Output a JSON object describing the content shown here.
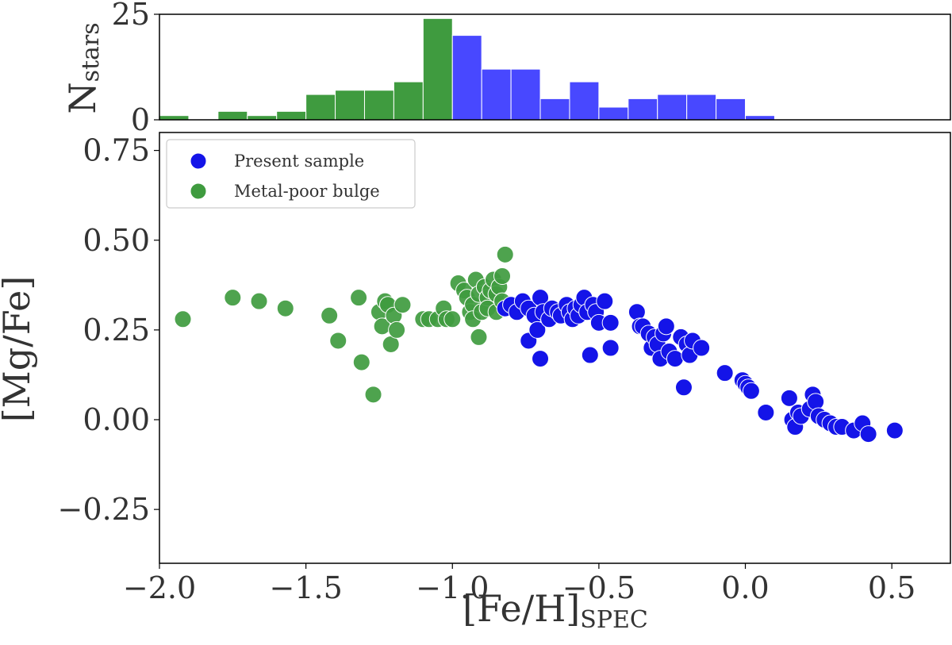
{
  "chart_data": [
    {
      "id": "histogram",
      "type": "bar",
      "ylabel": "N",
      "ylabel_sub": "stars",
      "xlim": [
        -2.0,
        0.7
      ],
      "ylim": [
        0,
        25
      ],
      "ytick_values": [
        0,
        25
      ],
      "ytick_labels": [
        "0",
        "25"
      ],
      "bin_width": 0.1,
      "colors": {
        "metal_poor": "#3f9b3f",
        "present": "#4848ff"
      },
      "bars": [
        {
          "x0": -2.0,
          "value": 1,
          "group": "metal_poor"
        },
        {
          "x0": -1.9,
          "value": 0,
          "group": "metal_poor"
        },
        {
          "x0": -1.8,
          "value": 2,
          "group": "metal_poor"
        },
        {
          "x0": -1.7,
          "value": 1,
          "group": "metal_poor"
        },
        {
          "x0": -1.6,
          "value": 2,
          "group": "metal_poor"
        },
        {
          "x0": -1.5,
          "value": 6,
          "group": "metal_poor"
        },
        {
          "x0": -1.4,
          "value": 7,
          "group": "metal_poor"
        },
        {
          "x0": -1.3,
          "value": 7,
          "group": "metal_poor"
        },
        {
          "x0": -1.2,
          "value": 9,
          "group": "metal_poor"
        },
        {
          "x0": -1.1,
          "value": 24,
          "group": "metal_poor"
        },
        {
          "x0": -1.0,
          "value": 20,
          "group": "present"
        },
        {
          "x0": -0.9,
          "value": 12,
          "group": "present"
        },
        {
          "x0": -0.8,
          "value": 12,
          "group": "present"
        },
        {
          "x0": -0.7,
          "value": 5,
          "group": "present"
        },
        {
          "x0": -0.6,
          "value": 9,
          "group": "present"
        },
        {
          "x0": -0.5,
          "value": 3,
          "group": "present"
        },
        {
          "x0": -0.4,
          "value": 5,
          "group": "present"
        },
        {
          "x0": -0.3,
          "value": 6,
          "group": "present"
        },
        {
          "x0": -0.2,
          "value": 6,
          "group": "present"
        },
        {
          "x0": -0.1,
          "value": 5,
          "group": "present"
        },
        {
          "x0": 0.0,
          "value": 1,
          "group": "present"
        }
      ]
    },
    {
      "id": "scatter",
      "type": "scatter",
      "xlabel": "[Fe/H]",
      "xlabel_sub": "SPEC",
      "ylabel": "[Mg/Fe]",
      "xlim": [
        -2.0,
        0.7
      ],
      "ylim": [
        -0.4,
        0.8
      ],
      "xtick_values": [
        -2.0,
        -1.5,
        -1.0,
        -0.5,
        0.0,
        0.5
      ],
      "xtick_labels": [
        "−2.0",
        "−1.5",
        "−1.0",
        "−0.5",
        "0.0",
        "0.5"
      ],
      "ytick_values": [
        0.75,
        0.5,
        0.25,
        0.0,
        -0.25
      ],
      "ytick_labels": [
        "0.75",
        "0.50",
        "0.25",
        "0.00",
        "−0.25"
      ],
      "legend": {
        "position": "top-left",
        "entries": [
          {
            "label": "Present sample",
            "color": "#1414e8"
          },
          {
            "label": "Metal-poor bulge",
            "color": "#3f9b3f"
          }
        ]
      },
      "series": [
        {
          "name": "Present sample",
          "color": "#1414e8",
          "points": [
            [
              -0.82,
              0.31
            ],
            [
              -0.8,
              0.32
            ],
            [
              -0.78,
              0.3
            ],
            [
              -0.76,
              0.33
            ],
            [
              -0.74,
              0.31
            ],
            [
              -0.74,
              0.22
            ],
            [
              -0.72,
              0.29
            ],
            [
              -0.71,
              0.25
            ],
            [
              -0.7,
              0.34
            ],
            [
              -0.7,
              0.17
            ],
            [
              -0.69,
              0.3
            ],
            [
              -0.67,
              0.28
            ],
            [
              -0.66,
              0.31
            ],
            [
              -0.64,
              0.3
            ],
            [
              -0.63,
              0.29
            ],
            [
              -0.61,
              0.32
            ],
            [
              -0.6,
              0.3
            ],
            [
              -0.59,
              0.28
            ],
            [
              -0.58,
              0.31
            ],
            [
              -0.57,
              0.29
            ],
            [
              -0.56,
              0.32
            ],
            [
              -0.55,
              0.34
            ],
            [
              -0.54,
              0.3
            ],
            [
              -0.53,
              0.18
            ],
            [
              -0.52,
              0.32
            ],
            [
              -0.51,
              0.3
            ],
            [
              -0.5,
              0.27
            ],
            [
              -0.48,
              0.33
            ],
            [
              -0.46,
              0.27
            ],
            [
              -0.46,
              0.2
            ],
            [
              -0.37,
              0.3
            ],
            [
              -0.36,
              0.26
            ],
            [
              -0.35,
              0.26
            ],
            [
              -0.33,
              0.24
            ],
            [
              -0.32,
              0.2
            ],
            [
              -0.31,
              0.23
            ],
            [
              -0.3,
              0.21
            ],
            [
              -0.29,
              0.17
            ],
            [
              -0.28,
              0.24
            ],
            [
              -0.27,
              0.26
            ],
            [
              -0.26,
              0.19
            ],
            [
              -0.24,
              0.17
            ],
            [
              -0.22,
              0.23
            ],
            [
              -0.21,
              0.09
            ],
            [
              -0.2,
              0.21
            ],
            [
              -0.19,
              0.18
            ],
            [
              -0.18,
              0.22
            ],
            [
              -0.15,
              0.2
            ],
            [
              -0.07,
              0.13
            ],
            [
              -0.01,
              0.11
            ],
            [
              0.0,
              0.1
            ],
            [
              0.01,
              0.09
            ],
            [
              0.02,
              0.08
            ],
            [
              0.07,
              0.02
            ],
            [
              0.15,
              0.06
            ],
            [
              0.16,
              0.0
            ],
            [
              0.17,
              -0.02
            ],
            [
              0.18,
              0.02
            ],
            [
              0.19,
              0.01
            ],
            [
              0.22,
              0.03
            ],
            [
              0.23,
              0.07
            ],
            [
              0.24,
              0.05
            ],
            [
              0.25,
              0.01
            ],
            [
              0.27,
              0.0
            ],
            [
              0.29,
              -0.01
            ],
            [
              0.31,
              -0.02
            ],
            [
              0.33,
              -0.02
            ],
            [
              0.37,
              -0.03
            ],
            [
              0.4,
              -0.01
            ],
            [
              0.42,
              -0.04
            ],
            [
              0.51,
              -0.03
            ]
          ]
        },
        {
          "name": "Metal-poor bulge",
          "color": "#3f9b3f",
          "points": [
            [
              -1.92,
              0.28
            ],
            [
              -1.75,
              0.34
            ],
            [
              -1.66,
              0.33
            ],
            [
              -1.57,
              0.31
            ],
            [
              -1.42,
              0.29
            ],
            [
              -1.39,
              0.22
            ],
            [
              -1.32,
              0.34
            ],
            [
              -1.31,
              0.16
            ],
            [
              -1.27,
              0.07
            ],
            [
              -1.25,
              0.3
            ],
            [
              -1.24,
              0.26
            ],
            [
              -1.23,
              0.33
            ],
            [
              -1.22,
              0.32
            ],
            [
              -1.21,
              0.21
            ],
            [
              -1.2,
              0.29
            ],
            [
              -1.19,
              0.25
            ],
            [
              -1.17,
              0.32
            ],
            [
              -1.1,
              0.28
            ],
            [
              -1.08,
              0.28
            ],
            [
              -1.05,
              0.28
            ],
            [
              -1.03,
              0.31
            ],
            [
              -1.02,
              0.28
            ],
            [
              -1.0,
              0.28
            ],
            [
              -0.98,
              0.38
            ],
            [
              -0.96,
              0.36
            ],
            [
              -0.95,
              0.34
            ],
            [
              -0.94,
              0.3
            ],
            [
              -0.93,
              0.32
            ],
            [
              -0.93,
              0.28
            ],
            [
              -0.92,
              0.39
            ],
            [
              -0.91,
              0.35
            ],
            [
              -0.91,
              0.23
            ],
            [
              -0.9,
              0.3
            ],
            [
              -0.89,
              0.37
            ],
            [
              -0.88,
              0.34
            ],
            [
              -0.88,
              0.31
            ],
            [
              -0.87,
              0.36
            ],
            [
              -0.86,
              0.39
            ],
            [
              -0.85,
              0.35
            ],
            [
              -0.85,
              0.3
            ],
            [
              -0.84,
              0.37
            ],
            [
              -0.83,
              0.33
            ],
            [
              -0.83,
              0.4
            ],
            [
              -0.82,
              0.46
            ]
          ]
        }
      ]
    }
  ]
}
